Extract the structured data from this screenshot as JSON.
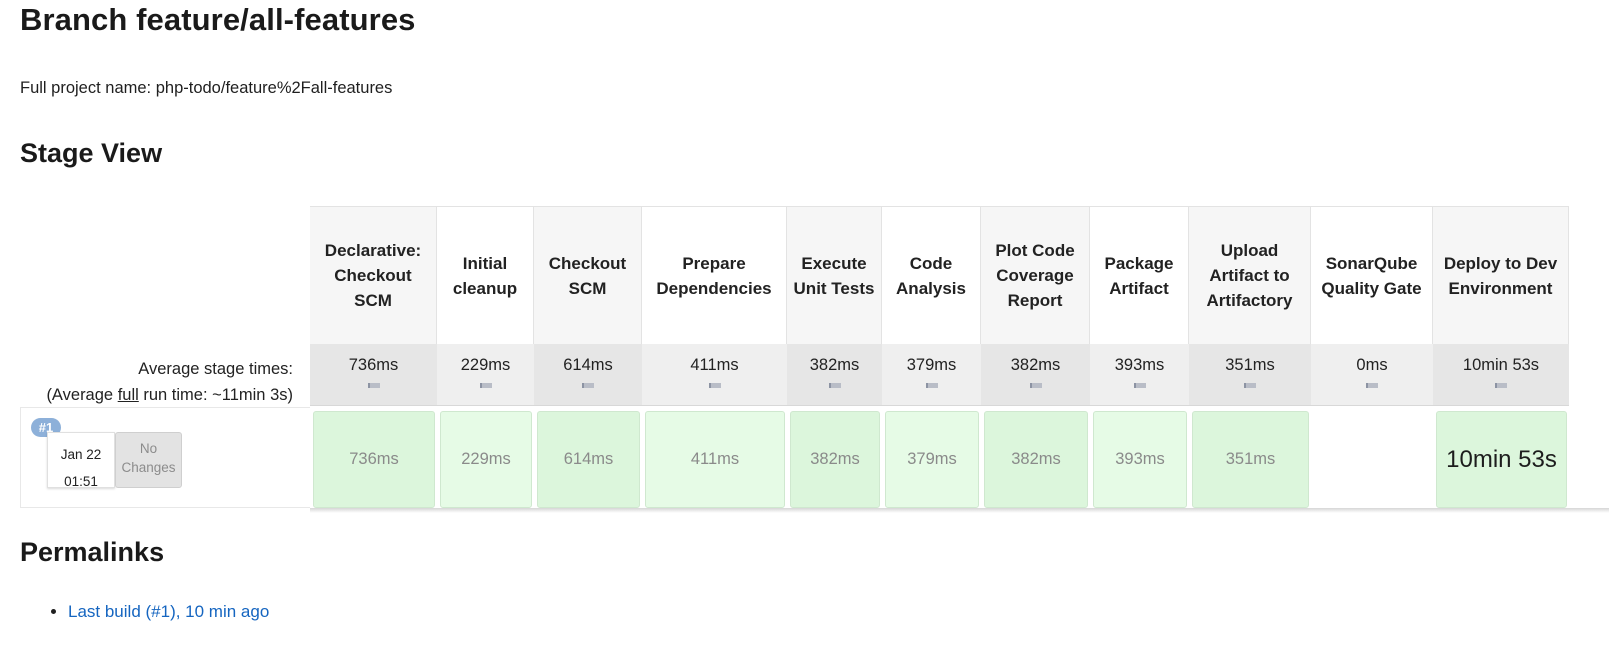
{
  "page": {
    "title": "Branch feature/all-features",
    "full_project_name": "Full project name: php-todo/feature%2Fall-features"
  },
  "stage_view": {
    "heading": "Stage View",
    "avg_label_line1": "Average stage times:",
    "avg_label_prefix": "(Average ",
    "avg_label_full": "full",
    "avg_label_suffix": " run time: ~11min 3s)",
    "stages": [
      {
        "name": "Declarative: Checkout SCM",
        "avg": "736ms",
        "run": "736ms"
      },
      {
        "name": "Initial cleanup",
        "avg": "229ms",
        "run": "229ms"
      },
      {
        "name": "Checkout SCM",
        "avg": "614ms",
        "run": "614ms"
      },
      {
        "name": "Prepare Dependencies",
        "avg": "411ms",
        "run": "411ms"
      },
      {
        "name": "Execute Unit Tests",
        "avg": "382ms",
        "run": "382ms"
      },
      {
        "name": "Code Analysis",
        "avg": "379ms",
        "run": "379ms"
      },
      {
        "name": "Plot Code Coverage Report",
        "avg": "382ms",
        "run": "382ms"
      },
      {
        "name": "Package Artifact",
        "avg": "393ms",
        "run": "393ms"
      },
      {
        "name": "Upload Artifact to Artifactory",
        "avg": "351ms",
        "run": "351ms"
      },
      {
        "name": "SonarQube Quality Gate",
        "avg": "0ms",
        "run": ""
      },
      {
        "name": "Deploy to Dev Environment",
        "avg": "10min 53s",
        "run": "10min 53s"
      }
    ],
    "run": {
      "badge": "#1",
      "date": "Jan 22",
      "time": "01:51",
      "changes": "No Changes"
    }
  },
  "permalinks": {
    "heading": "Permalinks",
    "items": [
      {
        "label": "Last build (#1), 10 min ago"
      }
    ]
  },
  "colors": {
    "success_cell": "#dcf6dc",
    "success_cell_alt": "#e6fbe6",
    "badge": "#8db0d9",
    "link": "#1565c0"
  }
}
